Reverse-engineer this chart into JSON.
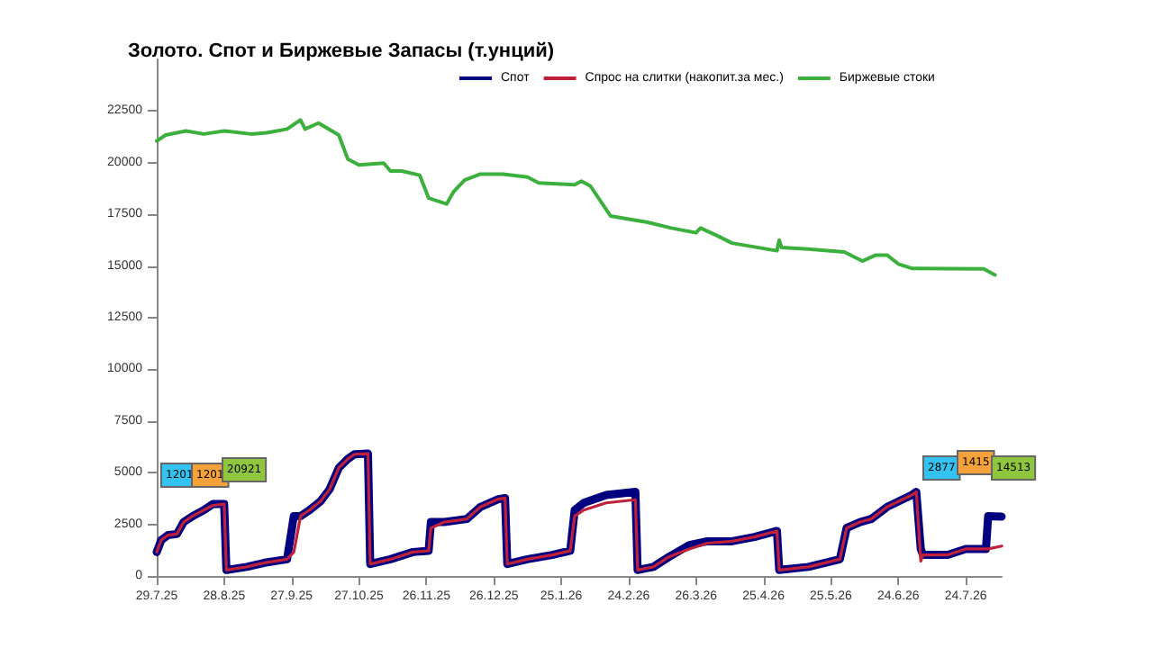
{
  "chart_data": {
    "type": "line",
    "title": "Золото. Спот и Биржевые Запасы (т.унций)",
    "x": [
      "2025-07-29",
      "2025-07-31",
      "2025-08-03",
      "2025-08-07",
      "2025-08-10",
      "2025-08-14",
      "2025-08-19",
      "2025-08-23",
      "2025-08-28",
      "2025-08-29",
      "2025-09-07",
      "2025-09-15",
      "2025-09-25",
      "2025-09-28",
      "2025-10-01",
      "2025-10-05",
      "2025-10-10",
      "2025-10-14",
      "2025-10-18",
      "2025-10-22",
      "2025-10-25",
      "2025-10-31",
      "2025-11-01",
      "2025-11-10",
      "2025-11-20",
      "2025-11-27",
      "2025-11-28",
      "2025-12-04",
      "2025-12-14",
      "2025-12-20",
      "2025-12-28",
      "2025-12-31",
      "2026-01-01",
      "2026-01-10",
      "2026-01-21",
      "2026-01-29",
      "2026-01-31",
      "2026-02-04",
      "2026-02-14",
      "2026-02-27",
      "2026-02-28",
      "2026-03-07",
      "2026-03-14",
      "2026-03-23",
      "2026-03-31",
      "2026-04-11",
      "2026-04-21",
      "2026-05-01",
      "2026-05-02",
      "2026-05-15",
      "2026-05-29",
      "2026-06-01",
      "2026-06-07",
      "2026-06-12",
      "2026-06-19",
      "2026-06-30",
      "2026-07-02",
      "2026-07-04",
      "2026-07-05",
      "2026-07-16",
      "2026-07-24",
      "2026-08-02",
      "2026-08-03",
      "2026-08-09"
    ],
    "series": [
      {
        "name": "Спот",
        "color": "#000080",
        "values": [
          1160,
          1740,
          1980,
          2030,
          2610,
          2900,
          3190,
          3480,
          3480,
          290,
          440,
          640,
          810,
          2900,
          2900,
          3190,
          3630,
          4210,
          5230,
          5660,
          5890,
          5920,
          580,
          810,
          1160,
          1220,
          2610,
          2610,
          2760,
          3340,
          3720,
          3770,
          580,
          810,
          1020,
          1220,
          3190,
          3540,
          3920,
          4070,
          290,
          440,
          930,
          1500,
          1680,
          1680,
          1890,
          2180,
          290,
          440,
          810,
          2320,
          2610,
          2760,
          3340,
          3920,
          4070,
          1310,
          1020,
          1020,
          1310,
          1310,
          2900,
          2877
        ]
      },
      {
        "name": "Спрос на слитки (накопит.за мес.)",
        "color": "#c0203a",
        "values": [
          1160,
          1740,
          1980,
          2030,
          2610,
          2900,
          3190,
          3420,
          3480,
          290,
          440,
          640,
          810,
          1160,
          2900,
          3190,
          3630,
          4210,
          5230,
          5660,
          5890,
          5920,
          580,
          810,
          1160,
          1220,
          2320,
          2610,
          2760,
          3340,
          3720,
          3770,
          580,
          810,
          1020,
          1220,
          2900,
          3190,
          3540,
          3690,
          290,
          440,
          930,
          1310,
          1590,
          1680,
          1890,
          2180,
          290,
          440,
          810,
          2320,
          2610,
          2760,
          3340,
          3920,
          4070,
          720,
          1020,
          1020,
          1310,
          1310,
          1310,
          1450
        ]
      },
      {
        "name": "Биржевые стоки",
        "color": "#3cb03c",
        "x": [
          "2025-07-29",
          "2025-08-02",
          "2025-08-11",
          "2025-08-19",
          "2025-08-28",
          "2025-09-09",
          "2025-09-16",
          "2025-09-25",
          "2025-10-01",
          "2025-10-03",
          "2025-10-09",
          "2025-10-18",
          "2025-10-22",
          "2025-10-27",
          "2025-11-07",
          "2025-11-10",
          "2025-11-15",
          "2025-11-23",
          "2025-11-27",
          "2025-12-05",
          "2025-12-08",
          "2025-12-13",
          "2025-12-20",
          "2025-12-30",
          "2026-01-10",
          "2026-01-15",
          "2026-01-31",
          "2026-02-03",
          "2026-02-07",
          "2026-02-16",
          "2026-02-24",
          "2026-03-04",
          "2026-03-15",
          "2026-03-26",
          "2026-03-28",
          "2026-04-04",
          "2026-04-11",
          "2026-05-01",
          "2026-05-02",
          "2026-05-03",
          "2026-05-15",
          "2026-05-31",
          "2026-06-08",
          "2026-06-14",
          "2026-06-19",
          "2026-06-24",
          "2026-06-30",
          "2026-07-16",
          "2026-08-01",
          "2026-08-06"
        ],
        "values": [
          21050,
          21340,
          21540,
          21390,
          21540,
          21390,
          21450,
          21630,
          22070,
          21630,
          21920,
          21340,
          20180,
          19890,
          19980,
          19600,
          19600,
          19400,
          18290,
          18000,
          18580,
          19160,
          19450,
          19450,
          19310,
          19020,
          18930,
          19110,
          18870,
          17420,
          17270,
          17130,
          16840,
          16610,
          16840,
          16490,
          16110,
          15740,
          16260,
          15900,
          15820,
          15680,
          15240,
          15530,
          15530,
          15100,
          14890,
          14870,
          14860,
          14570
        ]
      }
    ],
    "xlim": [
      "2025-07-29",
      "2026-08-09"
    ],
    "xticks": [
      {
        "value": "2025-07-29",
        "label": "29.7.25"
      },
      {
        "value": "2025-08-28",
        "label": "28.8.25"
      },
      {
        "value": "2025-09-27",
        "label": "27.9.25"
      },
      {
        "value": "2025-10-27",
        "label": "27.10.25"
      },
      {
        "value": "2025-11-26",
        "label": "26.11.25"
      },
      {
        "value": "2025-12-26",
        "label": "26.12.25"
      },
      {
        "value": "2026-01-25",
        "label": "25.1.26"
      },
      {
        "value": "2026-02-24",
        "label": "24.2.26"
      },
      {
        "value": "2026-03-26",
        "label": "26.3.26"
      },
      {
        "value": "2026-04-25",
        "label": "25.4.26"
      },
      {
        "value": "2026-05-25",
        "label": "25.5.26"
      },
      {
        "value": "2026-06-24",
        "label": "24.6.26"
      },
      {
        "value": "2026-07-24",
        "label": "24.7.26"
      }
    ],
    "ylim": [
      0,
      25000
    ],
    "yticks": [
      0,
      2500,
      5000,
      7500,
      10000,
      12500,
      15000,
      17500,
      20000,
      22500
    ],
    "annotations": [
      "1201",
      "1201",
      "20921",
      "2877",
      "1415",
      "14513"
    ],
    "legend": "top",
    "grid": false,
    "marker": "none",
    "line_style": "solid"
  }
}
